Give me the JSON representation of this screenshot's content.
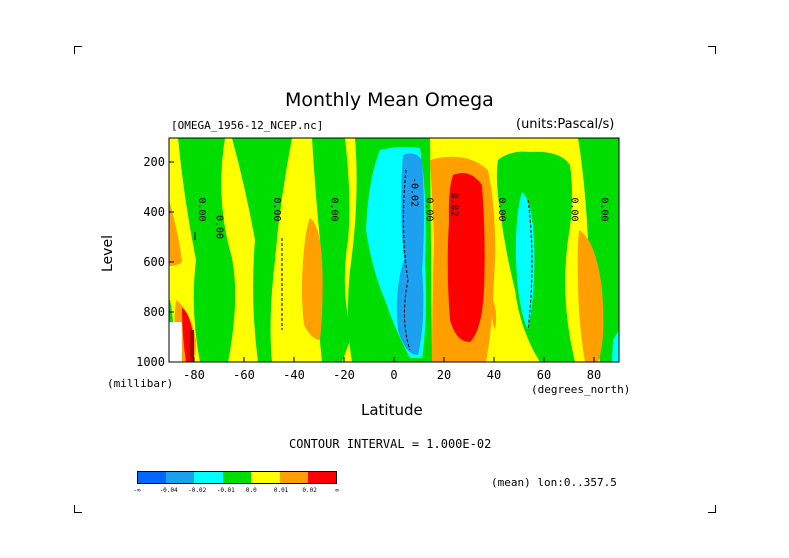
{
  "chart_data": {
    "type": "heatmap",
    "title": "Monthly Mean Omega",
    "file_label": "[OMEGA_1956-12_NCEP.nc]",
    "units_label": "(units:Pascal/s)",
    "xlabel": "Latitude",
    "xunit": "(degrees_north)",
    "ylabel": "Level",
    "yunit": "(millibar)",
    "xlim": [
      -90,
      90
    ],
    "ylim": [
      1000,
      100
    ],
    "x_ticks": [
      -80,
      -60,
      -40,
      -20,
      0,
      20,
      40,
      60,
      80
    ],
    "x_tick_labels": [
      "-80",
      "-60",
      "-40",
      "-20",
      "0",
      "20",
      "40",
      "60",
      "80"
    ],
    "y_ticks": [
      200,
      400,
      600,
      800,
      1000
    ],
    "y_tick_labels": [
      "200",
      "400",
      "600",
      "800",
      "1000"
    ],
    "contour_interval_text": "CONTOUR INTERVAL = 1.000E-02",
    "footer_text": "(mean) lon:0..357.5",
    "contour_labels": [
      {
        "text": "0.00",
        "lat": -78,
        "lev": 390
      },
      {
        "text": "0.00",
        "lat": -71,
        "lev": 460
      },
      {
        "text": "0.00",
        "lat": -48,
        "lev": 390
      },
      {
        "text": "0.00",
        "lat": -25,
        "lev": 390
      },
      {
        "text": "-0.02",
        "lat": 7,
        "lev": 320
      },
      {
        "text": "0.00",
        "lat": 13,
        "lev": 390
      },
      {
        "text": "0.02",
        "lat": 23,
        "lev": 370
      },
      {
        "text": "0.00",
        "lat": 42,
        "lev": 390
      },
      {
        "text": "0.00",
        "lat": 71,
        "lev": 390
      },
      {
        "text": "0.00",
        "lat": 83,
        "lev": 390
      }
    ],
    "levels": [
      "-inf",
      -0.04,
      -0.02,
      -0.01,
      0.0,
      0.01,
      0.02,
      "inf"
    ],
    "colorbar": {
      "colors": [
        "#0066ff",
        "#1ea0f0",
        "#00ffff",
        "#00dd00",
        "#ffff00",
        "#ffa000",
        "#ff0000"
      ],
      "labels": [
        "-∞",
        "-0.04",
        "-0.02",
        "-0.01",
        "0.0",
        "0.01",
        "0.02",
        "∞"
      ]
    },
    "regions": [
      {
        "name": "yellow background",
        "value": 0.005
      },
      {
        "name": "strong sinking (red) core",
        "lat_range": [
          20,
          31
        ],
        "lev_range": [
          250,
          900
        ],
        "value": 0.025
      },
      {
        "name": "strong rising (blue) core",
        "lat_range": [
          2,
          10
        ],
        "lev_range": [
          200,
          950
        ],
        "value": -0.025
      }
    ]
  }
}
